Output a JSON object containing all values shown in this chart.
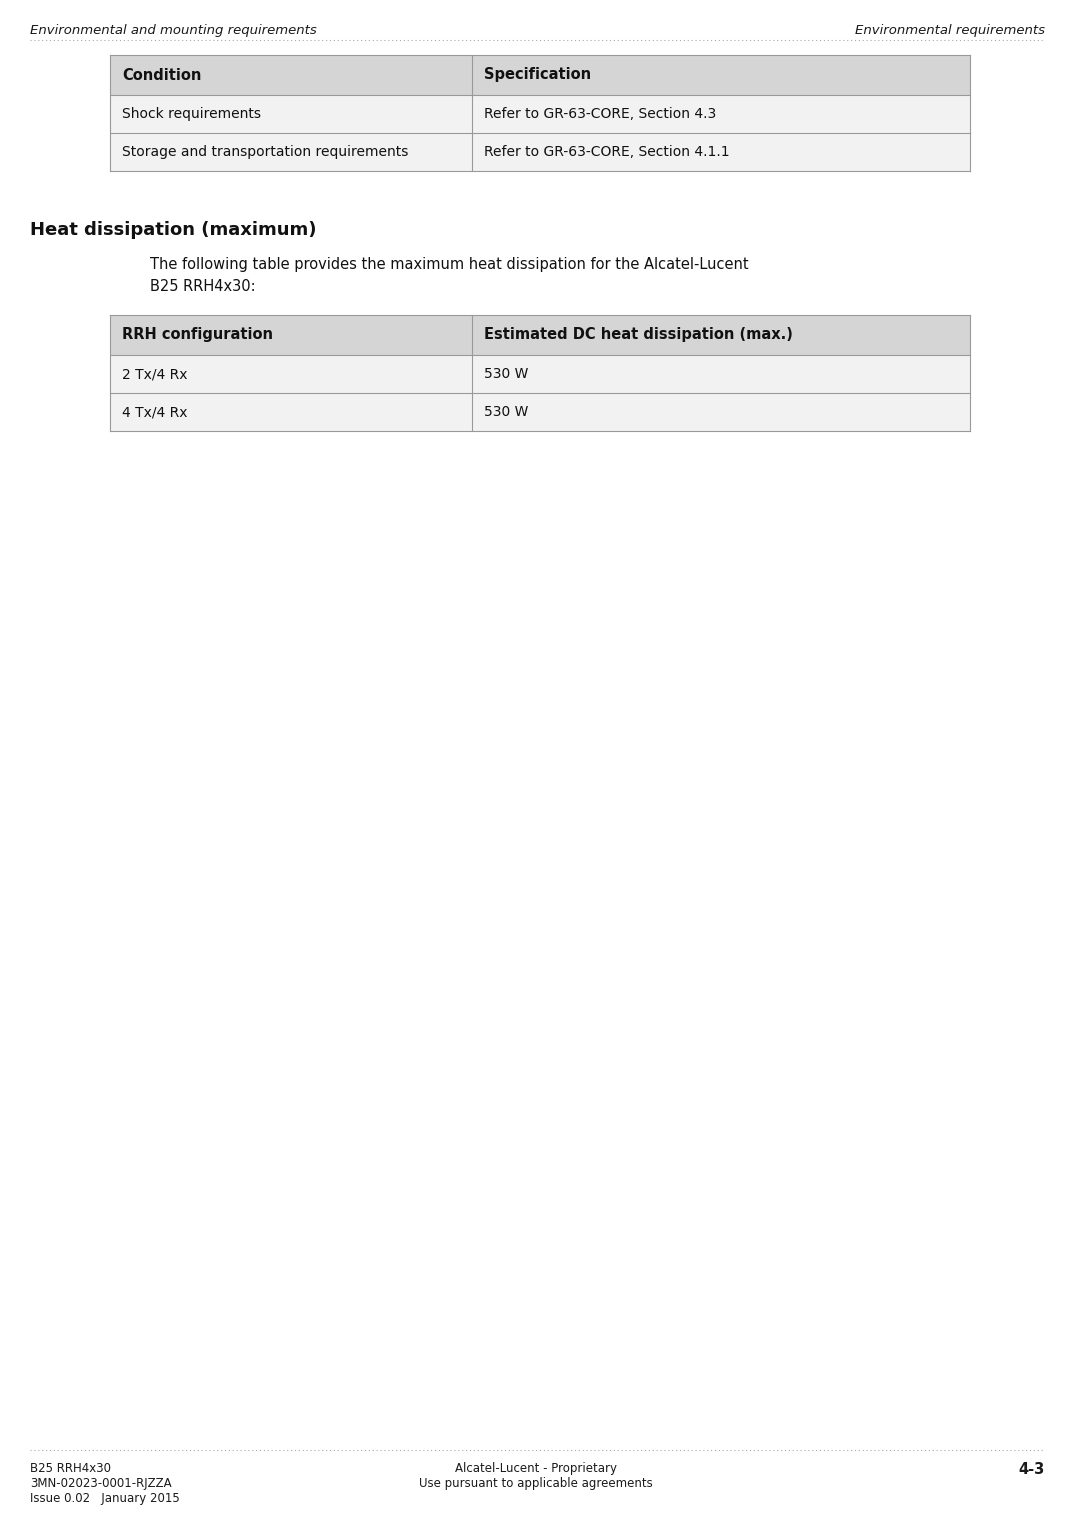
{
  "page_bg": "#ffffff",
  "header_left": "Environmental and mounting requirements",
  "header_right": "Environmental requirements",
  "header_font_size": 9.5,
  "table1_header_bg": "#d5d5d5",
  "table1_row_bg": "#f2f2f2",
  "table1_border_color": "#999999",
  "table1_headers": [
    "Condition",
    "Specification"
  ],
  "table1_rows": [
    [
      "Shock requirements",
      "Refer to GR-63-CORE, Section 4.3"
    ],
    [
      "Storage and transportation requirements",
      "Refer to GR-63-CORE, Section 4.1.1"
    ]
  ],
  "section_title": "Heat dissipation (maximum)",
  "section_title_font_size": 13,
  "body_text_line1": "The following table provides the maximum heat dissipation for the Alcatel-Lucent",
  "body_text_line2": "B25 RRH4x30:",
  "body_font_size": 10.5,
  "table2_header_bg": "#d5d5d5",
  "table2_row_bg": "#f2f2f2",
  "table2_border_color": "#999999",
  "table2_headers": [
    "RRH configuration",
    "Estimated DC heat dissipation (max.)"
  ],
  "table2_rows": [
    [
      "2 Tx/4 Rx",
      "530 W"
    ],
    [
      "4 Tx/4 Rx",
      "530 W"
    ]
  ],
  "footer_left_line1": "B25 RRH4x30",
  "footer_left_line2": "3MN-02023-0001-RJZZA",
  "footer_left_line3": "Issue 0.02   January 2015",
  "footer_center_line1": "Alcatel-Lucent - Proprietary",
  "footer_center_line2": "Use pursuant to applicable agreements",
  "footer_right": "4-3",
  "footer_font_size": 8.5,
  "table_font_size": 10,
  "table_header_font_size": 10.5
}
